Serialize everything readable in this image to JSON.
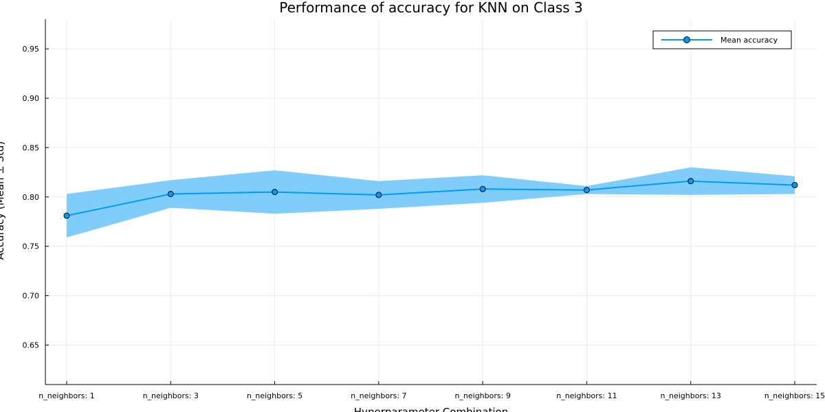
{
  "chart_data": {
    "type": "line",
    "title": "Performance of accuracy for KNN on Class 3",
    "xlabel": "Hyperparameter Combination",
    "ylabel": "Accuracy (Mean ± Std)",
    "categories": [
      "n_neighbors: 1",
      "n_neighbors: 3",
      "n_neighbors: 5",
      "n_neighbors: 7",
      "n_neighbors: 9",
      "n_neighbors: 11",
      "n_neighbors: 13",
      "n_neighbors: 15"
    ],
    "series": [
      {
        "name": "Mean accuracy",
        "values": [
          0.781,
          0.803,
          0.805,
          0.802,
          0.808,
          0.807,
          0.816,
          0.812
        ],
        "std": [
          0.022,
          0.014,
          0.022,
          0.014,
          0.014,
          0.004,
          0.014,
          0.009
        ]
      }
    ],
    "ylim": [
      0.61,
      0.98
    ],
    "yticks": [
      0.65,
      0.7,
      0.75,
      0.8,
      0.85,
      0.9,
      0.95
    ],
    "ytick_labels": [
      "0.65",
      "0.70",
      "0.75",
      "0.80",
      "0.85",
      "0.90",
      "0.95"
    ],
    "grid": true,
    "legend_position": "top-right",
    "colors": {
      "line": "#009af9",
      "band": "#80cdfc",
      "marker_edge": "#000000"
    }
  }
}
